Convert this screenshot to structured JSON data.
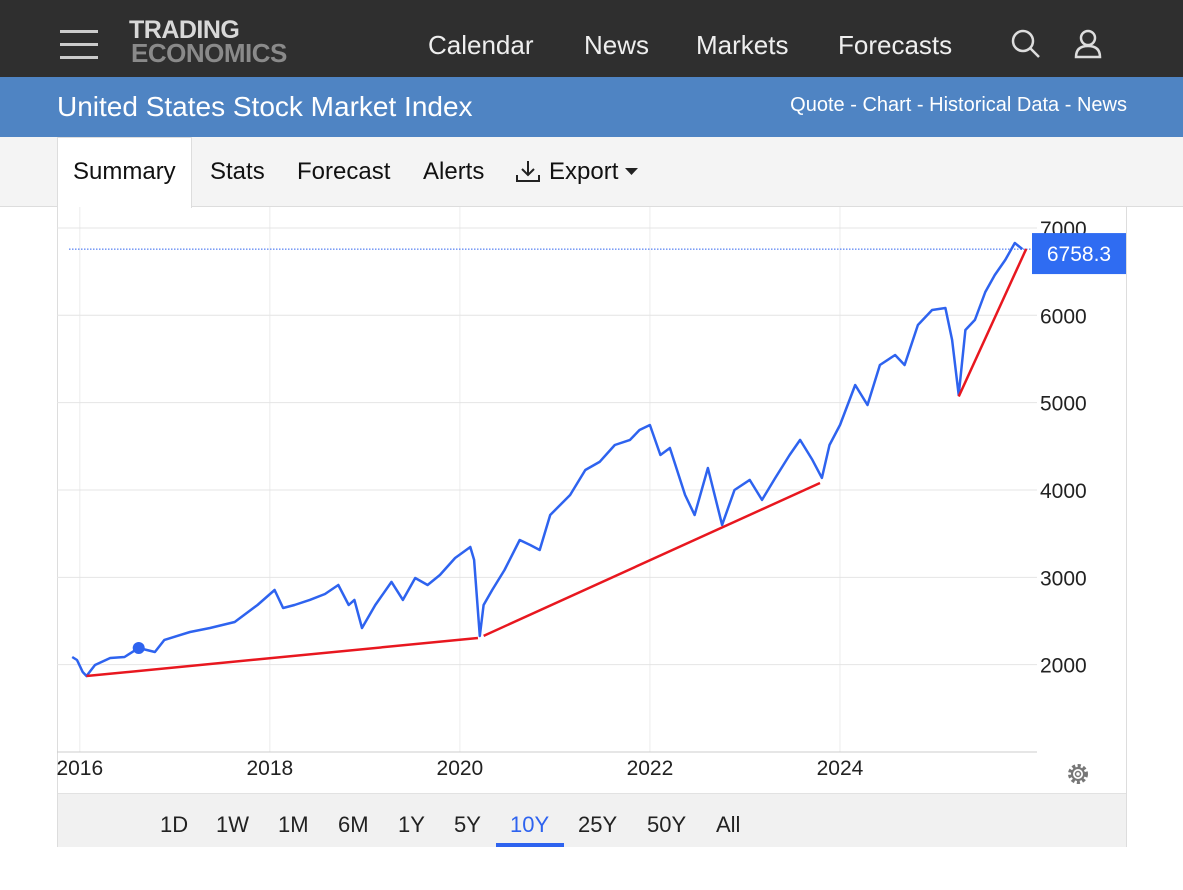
{
  "nav": {
    "logo": [
      "TRADING",
      "ECONOMICS"
    ],
    "links": [
      "Calendar",
      "News",
      "Markets",
      "Forecasts"
    ]
  },
  "header": {
    "title": "United States Stock Market Index",
    "links": [
      "Quote",
      "Chart",
      "Historical Data",
      "News"
    ],
    "separator": "-"
  },
  "tabs": {
    "items": [
      "Summary",
      "Stats",
      "Forecast",
      "Alerts",
      "Export"
    ],
    "active": 0
  },
  "chart_data": {
    "type": "line",
    "x": [
      2015.92,
      2015.97,
      2016.03,
      2016.07,
      2016.16,
      2016.32,
      2016.47,
      2016.62,
      2016.79,
      2016.89,
      2017.16,
      2017.37,
      2017.63,
      2017.87,
      2018.05,
      2018.14,
      2018.26,
      2018.42,
      2018.58,
      2018.72,
      2018.83,
      2018.89,
      2018.97,
      2019.11,
      2019.28,
      2019.4,
      2019.53,
      2019.66,
      2019.79,
      2019.95,
      2020.11,
      2020.15,
      2020.21,
      2020.25,
      2020.34,
      2020.47,
      2020.63,
      2020.74,
      2020.84,
      2020.95,
      2021.16,
      2021.32,
      2021.47,
      2021.63,
      2021.79,
      2021.89,
      2022.0,
      2022.11,
      2022.21,
      2022.37,
      2022.47,
      2022.61,
      2022.76,
      2022.89,
      2023.05,
      2023.18,
      2023.32,
      2023.47,
      2023.58,
      2023.71,
      2023.81,
      2023.89,
      2024.0,
      2024.16,
      2024.29,
      2024.42,
      2024.58,
      2024.68,
      2024.82,
      2024.97,
      2025.11,
      2025.18,
      2025.25,
      2025.32,
      2025.42,
      2025.53,
      2025.63,
      2025.74,
      2025.84,
      2025.92
    ],
    "values": [
      2088,
      2053,
      1916,
      1870,
      1996,
      2076,
      2088,
      2191,
      2145,
      2283,
      2374,
      2420,
      2489,
      2683,
      2855,
      2649,
      2683,
      2741,
      2809,
      2912,
      2683,
      2741,
      2420,
      2683,
      2947,
      2741,
      2992,
      2912,
      3027,
      3221,
      3347,
      3199,
      2328,
      2683,
      2855,
      3084,
      3427,
      3370,
      3313,
      3714,
      3943,
      4229,
      4321,
      4515,
      4573,
      4687,
      4744,
      4401,
      4481,
      3943,
      3714,
      4252,
      3600,
      4000,
      4115,
      3886,
      4138,
      4401,
      4573,
      4344,
      4138,
      4515,
      4744,
      5202,
      4973,
      5431,
      5546,
      5431,
      5889,
      6061,
      6084,
      5718,
      5088,
      5832,
      5947,
      6267,
      6462,
      6634,
      6828,
      6758.3
    ],
    "color": "#2e63ef",
    "last_value": 6758.3,
    "value_box_color": "#2f6cf2",
    "trendlines": [
      {
        "x": [
          2016.07,
          2020.19
        ],
        "y": [
          1870,
          2305
        ]
      },
      {
        "x": [
          2020.25,
          2023.79
        ],
        "y": [
          2330,
          4080
        ]
      },
      {
        "x": [
          2025.25,
          2025.96
        ],
        "y": [
          5070,
          6760
        ]
      }
    ],
    "trendline_color": "#e8171f",
    "marker": {
      "x": 2016.62,
      "y": 2191
    },
    "xlim": [
      2015.76,
      2026.0
    ],
    "xticks": [
      2016,
      2018,
      2020,
      2022,
      2024
    ],
    "ylim": [
      1000,
      7240
    ],
    "yticks": [
      2000,
      3000,
      4000,
      5000,
      6000,
      7000
    ],
    "grid": true
  },
  "range_buttons": {
    "items": [
      "1D",
      "1W",
      "1M",
      "6M",
      "1Y",
      "5Y",
      "10Y",
      "25Y",
      "50Y",
      "All"
    ],
    "active": 6
  }
}
